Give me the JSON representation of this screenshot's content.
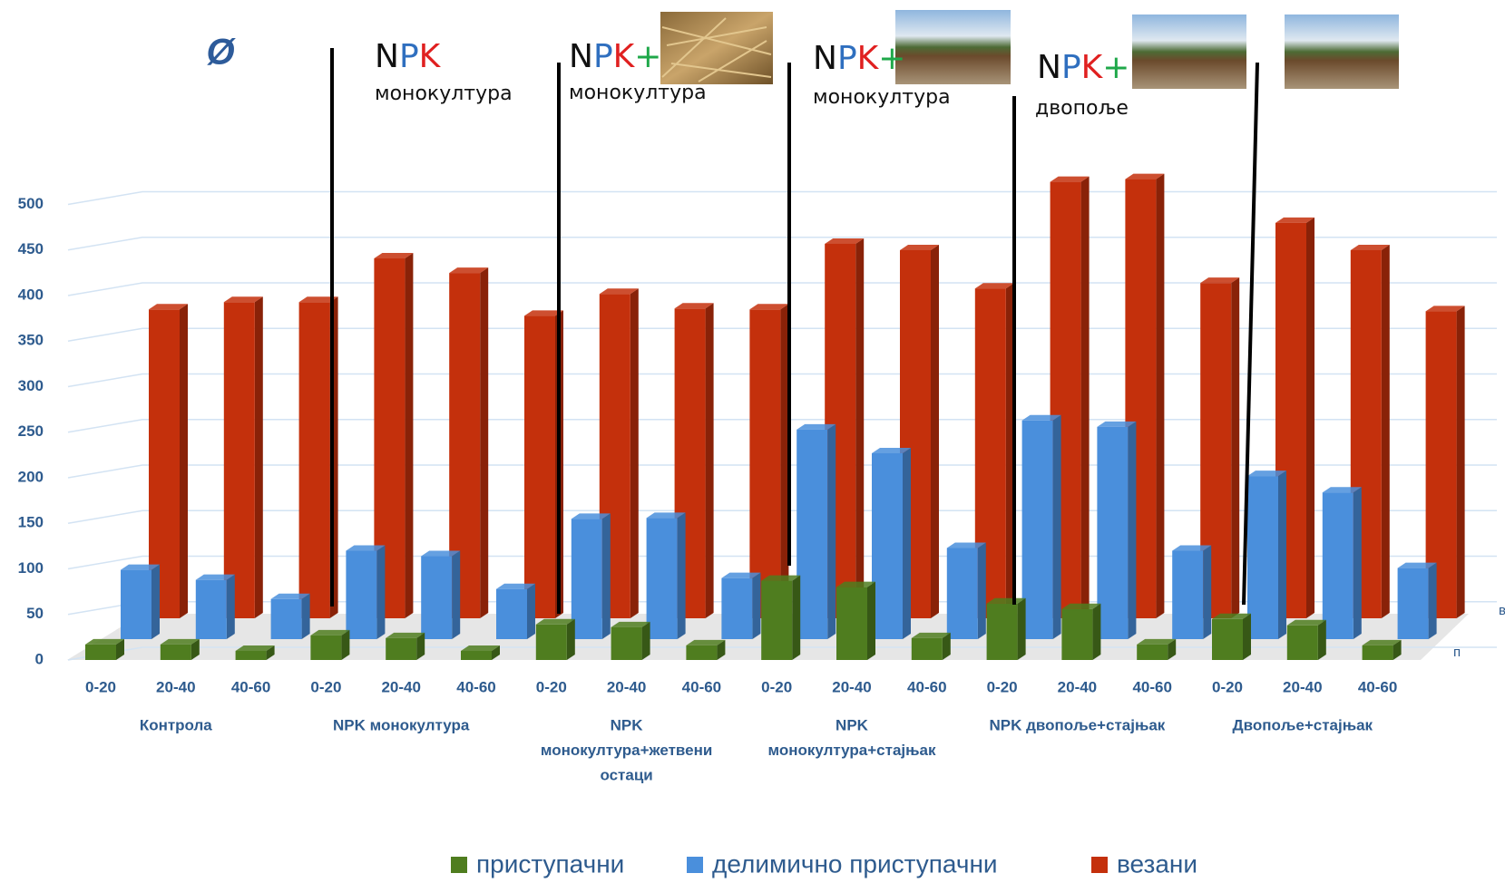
{
  "chart_data": {
    "type": "bar3d",
    "categories": [
      "0-20",
      "20-40",
      "40-60",
      "0-20",
      "20-40",
      "40-60",
      "0-20",
      "20-40",
      "40-60",
      "0-20",
      "20-40",
      "40-60",
      "0-20",
      "20-40",
      "40-60",
      "0-20",
      "20-40",
      "40-60"
    ],
    "groups": [
      [
        "Контрола"
      ],
      [
        "NPK монокултура"
      ],
      [
        "NPK",
        "монокултура+жетвени",
        "остаци"
      ],
      [
        "NPK",
        "монокултура+стајњак"
      ],
      [
        "NPK двопоље+стајњак"
      ],
      [
        "Двопоље+стајњак"
      ]
    ],
    "series": [
      {
        "name": "приступачни",
        "color": "#4f7d1f",
        "values": [
          17,
          17,
          10,
          27,
          24,
          10,
          39,
          36,
          16,
          87,
          80,
          24,
          62,
          56,
          17,
          45,
          38,
          16
        ]
      },
      {
        "name": "делимично приступачни",
        "color": "#4a8fdc",
        "values": [
          76,
          65,
          44,
          97,
          91,
          55,
          132,
          133,
          67,
          230,
          204,
          100,
          240,
          233,
          97,
          179,
          161,
          78
        ]
      },
      {
        "name": "везани",
        "color": "#c4300c",
        "values": [
          339,
          347,
          347,
          395,
          379,
          332,
          356,
          340,
          339,
          411,
          404,
          362,
          479,
          482,
          368,
          434,
          404,
          337
        ]
      }
    ],
    "ylim": [
      0,
      500
    ],
    "yticks": [
      0,
      50,
      100,
      150,
      200,
      250,
      300,
      350,
      400,
      450,
      500
    ],
    "grid": true,
    "depth_axis_labels": [
      "в",
      "п"
    ],
    "annotations": {
      "symbol": "Ø",
      "letter_colors": [
        "#111111",
        "#2f6fbf",
        "#e02020",
        "#1fa84a"
      ],
      "labels": [
        {
          "parts": [
            "N",
            "P",
            "K"
          ],
          "subtitle": "монокултура"
        },
        {
          "parts": [
            "N",
            "P",
            "K",
            "+"
          ],
          "subtitle": "монокултура"
        },
        {
          "parts": [
            "N",
            "P",
            "K",
            "+"
          ],
          "subtitle": "монокултура"
        },
        {
          "parts": [
            "N",
            "P",
            "K",
            "+"
          ],
          "subtitle": "двопоље"
        }
      ]
    }
  }
}
